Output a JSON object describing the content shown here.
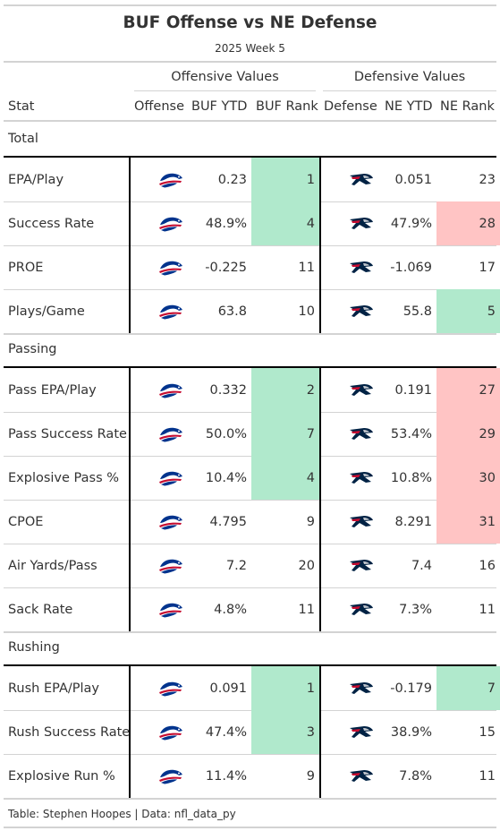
{
  "title": "BUF Offense vs NE Defense",
  "subtitle": "2025 Week 5",
  "spanners": {
    "offensive": "Offensive Values",
    "defensive": "Defensive Values"
  },
  "columns": {
    "stat": "Stat",
    "offense": "Offense",
    "buf_ytd": "BUF YTD",
    "buf_rank": "BUF Rank",
    "defense": "Defense",
    "ne_ytd": "NE YTD",
    "ne_rank": "NE Rank"
  },
  "logo_icons": {
    "offense": "buffalo-bills-logo-icon",
    "defense": "new-england-patriots-logo-icon"
  },
  "colors": {
    "good_rank": "#b0e9cc",
    "bad_rank": "#ffc4c4",
    "bills_blue": "#00338D",
    "bills_red": "#C60C30",
    "pats_navy": "#002244",
    "pats_red": "#C60C30"
  },
  "groups": [
    {
      "label": "Total",
      "rows": [
        {
          "stat": "EPA/Play",
          "buf_ytd": "0.23",
          "buf_rank": "1",
          "buf_rank_status": "good",
          "ne_ytd": "0.051",
          "ne_rank": "23",
          "ne_rank_status": "none"
        },
        {
          "stat": "Success Rate",
          "buf_ytd": "48.9%",
          "buf_rank": "4",
          "buf_rank_status": "good",
          "ne_ytd": "47.9%",
          "ne_rank": "28",
          "ne_rank_status": "bad"
        },
        {
          "stat": "PROE",
          "buf_ytd": "-0.225",
          "buf_rank": "11",
          "buf_rank_status": "none",
          "ne_ytd": "-1.069",
          "ne_rank": "17",
          "ne_rank_status": "none"
        },
        {
          "stat": "Plays/Game",
          "buf_ytd": "63.8",
          "buf_rank": "10",
          "buf_rank_status": "none",
          "ne_ytd": "55.8",
          "ne_rank": "5",
          "ne_rank_status": "good"
        }
      ]
    },
    {
      "label": "Passing",
      "rows": [
        {
          "stat": "Pass EPA/Play",
          "buf_ytd": "0.332",
          "buf_rank": "2",
          "buf_rank_status": "good",
          "ne_ytd": "0.191",
          "ne_rank": "27",
          "ne_rank_status": "bad"
        },
        {
          "stat": "Pass Success Rate",
          "buf_ytd": "50.0%",
          "buf_rank": "7",
          "buf_rank_status": "good",
          "ne_ytd": "53.4%",
          "ne_rank": "29",
          "ne_rank_status": "bad"
        },
        {
          "stat": "Explosive Pass %",
          "buf_ytd": "10.4%",
          "buf_rank": "4",
          "buf_rank_status": "good",
          "ne_ytd": "10.8%",
          "ne_rank": "30",
          "ne_rank_status": "bad"
        },
        {
          "stat": "CPOE",
          "buf_ytd": "4.795",
          "buf_rank": "9",
          "buf_rank_status": "none",
          "ne_ytd": "8.291",
          "ne_rank": "31",
          "ne_rank_status": "bad"
        },
        {
          "stat": "Air Yards/Pass",
          "buf_ytd": "7.2",
          "buf_rank": "20",
          "buf_rank_status": "none",
          "ne_ytd": "7.4",
          "ne_rank": "16",
          "ne_rank_status": "none"
        },
        {
          "stat": "Sack Rate",
          "buf_ytd": "4.8%",
          "buf_rank": "11",
          "buf_rank_status": "none",
          "ne_ytd": "7.3%",
          "ne_rank": "11",
          "ne_rank_status": "none"
        }
      ]
    },
    {
      "label": "Rushing",
      "rows": [
        {
          "stat": "Rush EPA/Play",
          "buf_ytd": "0.091",
          "buf_rank": "1",
          "buf_rank_status": "good",
          "ne_ytd": "-0.179",
          "ne_rank": "7",
          "ne_rank_status": "good"
        },
        {
          "stat": "Rush Success Rate",
          "buf_ytd": "47.4%",
          "buf_rank": "3",
          "buf_rank_status": "good",
          "ne_ytd": "38.9%",
          "ne_rank": "15",
          "ne_rank_status": "none"
        },
        {
          "stat": "Explosive Run %",
          "buf_ytd": "11.4%",
          "buf_rank": "9",
          "buf_rank_status": "none",
          "ne_ytd": "7.8%",
          "ne_rank": "11",
          "ne_rank_status": "none"
        }
      ]
    }
  ],
  "footer": "Table: Stephen Hoopes | Data: nfl_data_py"
}
